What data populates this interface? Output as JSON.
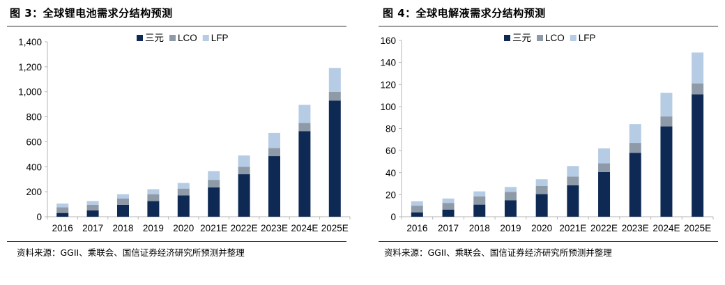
{
  "colors": {
    "sanyuan": "#0e2a54",
    "lco": "#8e9aa8",
    "lfp": "#b6cbe4",
    "axis": "#b5b5b5"
  },
  "figures": [
    {
      "title": "图 3：全球锂电池需求分结构预测",
      "source": "资料来源：GGII、乘联会、国信证券经济研究所预测并整理"
    },
    {
      "title": "图 4：全球电解液需求分结构预测",
      "source": "资料来源：GGII、乘联会、国信证券经济研究所预测并整理"
    }
  ],
  "chart_data": [
    {
      "type": "bar",
      "stacked": true,
      "title": "全球锂电池需求分结构预测",
      "categories": [
        "2016",
        "2017",
        "2018",
        "2019",
        "2020",
        "2021E",
        "2022E",
        "2023E",
        "2024E",
        "2025E"
      ],
      "series": [
        {
          "name": "三元",
          "values": [
            30,
            50,
            95,
            125,
            170,
            235,
            340,
            485,
            685,
            930
          ]
        },
        {
          "name": "LCO",
          "values": [
            45,
            45,
            50,
            55,
            55,
            60,
            60,
            65,
            65,
            70
          ]
        },
        {
          "name": "LFP",
          "values": [
            30,
            30,
            35,
            40,
            45,
            70,
            90,
            120,
            145,
            190
          ]
        }
      ],
      "ylim": [
        0,
        1400
      ],
      "yticks": [
        0,
        200,
        400,
        600,
        800,
        1000,
        1200,
        1400
      ],
      "ytick_labels": [
        "0",
        "200",
        "400",
        "600",
        "800",
        "1,000",
        "1,200",
        "1,400"
      ],
      "legend": "top-center",
      "grid": false
    },
    {
      "type": "bar",
      "stacked": true,
      "title": "全球电解液需求分结构预测",
      "categories": [
        "2016",
        "2017",
        "2018",
        "2019",
        "2020",
        "2021E",
        "2022E",
        "2023E",
        "2024E",
        "2025E"
      ],
      "series": [
        {
          "name": "三元",
          "values": [
            4,
            6.5,
            11,
            15,
            20.5,
            28.5,
            40.5,
            58,
            82,
            111
          ]
        },
        {
          "name": "LCO",
          "values": [
            6,
            6,
            7.5,
            7.5,
            7.5,
            8,
            8,
            9,
            9,
            10
          ]
        },
        {
          "name": "LFP",
          "values": [
            4,
            4,
            4.5,
            4.5,
            6,
            9.5,
            13.5,
            17,
            21.5,
            28
          ]
        }
      ],
      "ylim": [
        0,
        160
      ],
      "yticks": [
        0,
        20,
        40,
        60,
        80,
        100,
        120,
        140,
        160
      ],
      "ytick_labels": [
        "0",
        "20",
        "40",
        "60",
        "80",
        "100",
        "120",
        "140",
        "160"
      ],
      "legend": "top-center",
      "grid": false
    }
  ]
}
